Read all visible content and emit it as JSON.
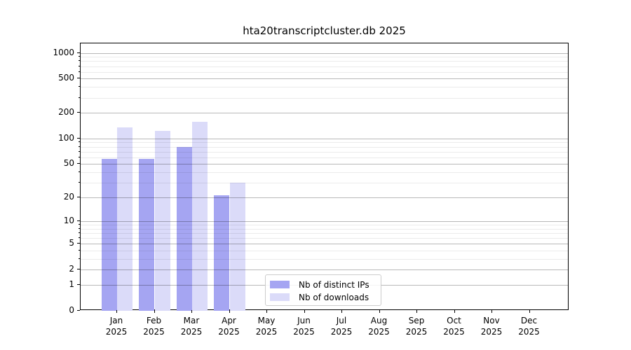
{
  "title": "hta20transcriptcluster.db 2025",
  "chart_data": {
    "type": "bar",
    "title": "hta20transcriptcluster.db 2025",
    "categories": [
      "Jan",
      "Feb",
      "Mar",
      "Apr",
      "May",
      "Jun",
      "Jul",
      "Aug",
      "Sep",
      "Oct",
      "Nov",
      "Dec"
    ],
    "x_tick_year": "2025",
    "series": [
      {
        "name": "Nb of distinct IPs",
        "color": "#a5a5f2",
        "values": [
          58,
          57,
          79,
          21,
          0,
          0,
          0,
          0,
          0,
          0,
          0,
          0
        ]
      },
      {
        "name": "Nb of downloads",
        "color": "#dbdbf9",
        "values": [
          135,
          124,
          158,
          30,
          0,
          0,
          0,
          0,
          0,
          0,
          0,
          0
        ]
      }
    ],
    "y_major_ticks": [
      0,
      1,
      2,
      5,
      10,
      20,
      50,
      100,
      200,
      500,
      1000
    ],
    "y_minor_ticks": [
      3,
      4,
      6,
      7,
      8,
      9,
      30,
      40,
      60,
      70,
      80,
      90,
      300,
      400,
      600,
      700,
      800,
      900
    ],
    "y_scale": "log1p",
    "ylim": [
      0,
      1290
    ],
    "grid": true,
    "legend_position": "lower-left-of-center",
    "xlabel": "",
    "ylabel": ""
  }
}
